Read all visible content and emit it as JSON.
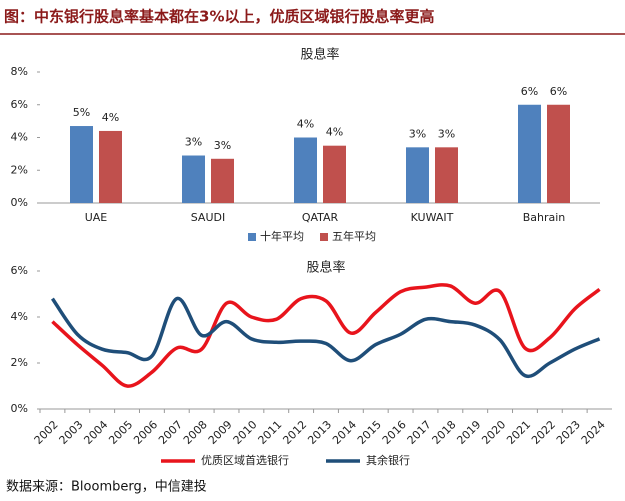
{
  "header": {
    "title": "图：中东银行股息率基本都在3%以上，优质区域银行股息率更高"
  },
  "chart_data": [
    {
      "type": "bar",
      "title": "股息率",
      "categories": [
        "UAE",
        "SAUDI",
        "QATAR",
        "KUWAIT",
        "Bahrain"
      ],
      "series": [
        {
          "name": "十年平均",
          "color": "#4f81bd",
          "values": [
            4.7,
            2.9,
            4.0,
            3.4,
            6.0
          ],
          "value_labels": [
            "5%",
            "3%",
            "4%",
            "3%",
            "6%"
          ]
        },
        {
          "name": "五年平均",
          "color": "#c0504d",
          "values": [
            4.4,
            2.7,
            3.5,
            3.4,
            6.0
          ],
          "value_labels": [
            "4%",
            "3%",
            "4%",
            "3%",
            "6%"
          ]
        }
      ],
      "ylim": [
        0,
        8
      ],
      "yticks": [
        {
          "value": 0,
          "label": "0%"
        },
        {
          "value": 2,
          "label": "2%"
        },
        {
          "value": 4,
          "label": "4%"
        },
        {
          "value": 6,
          "label": "6%"
        },
        {
          "value": 8,
          "label": "8%"
        }
      ],
      "legend": "bottom"
    },
    {
      "type": "line",
      "title": "股息率",
      "categories": [
        "2002",
        "2003",
        "2004",
        "2005",
        "2006",
        "2007",
        "2008",
        "2009",
        "2010",
        "2011",
        "2012",
        "2013",
        "2014",
        "2015",
        "2016",
        "2017",
        "2018",
        "2019",
        "2020",
        "2021",
        "2022",
        "2023",
        "2024"
      ],
      "series": [
        {
          "name": "优质区域首选银行",
          "color": "#e8141c",
          "values": [
            3.8,
            2.8,
            1.9,
            1.0,
            1.6,
            2.65,
            2.6,
            4.6,
            4.0,
            3.9,
            4.8,
            4.7,
            3.3,
            4.2,
            5.1,
            5.3,
            5.35,
            4.6,
            5.1,
            2.65,
            3.1,
            4.35,
            5.2
          ]
        },
        {
          "name": "其余银行",
          "color": "#1f4e79",
          "values": [
            4.8,
            3.25,
            2.6,
            2.45,
            2.3,
            4.8,
            3.2,
            3.8,
            3.05,
            2.9,
            2.95,
            2.85,
            2.1,
            2.8,
            3.25,
            3.9,
            3.8,
            3.65,
            3.0,
            1.45,
            2.0,
            2.6,
            3.05
          ]
        }
      ],
      "ylim": [
        0,
        6
      ],
      "yticks": [
        {
          "value": 0,
          "label": "0%"
        },
        {
          "value": 2,
          "label": "2%"
        },
        {
          "value": 4,
          "label": "4%"
        },
        {
          "value": 6,
          "label": "6%"
        }
      ],
      "legend": "bottom"
    }
  ],
  "footer": {
    "source": "数据来源：Bloomberg，中信建投"
  }
}
